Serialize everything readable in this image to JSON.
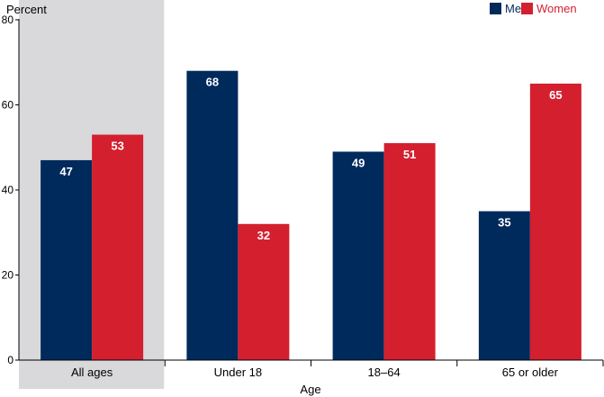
{
  "chart_data": {
    "type": "bar",
    "ylabel": "Percent",
    "xlabel": "Age",
    "ylim": [
      0,
      80
    ],
    "yticks": [
      0,
      20,
      40,
      60,
      80
    ],
    "grid": false,
    "legend_position": "top-right",
    "categories": [
      "All ages",
      "Under 18",
      "18–64",
      "65 or older"
    ],
    "highlighted_category": "All ages",
    "series": [
      {
        "name": "Men",
        "color": "#002a5c",
        "values": [
          47,
          68,
          49,
          35
        ]
      },
      {
        "name": "Women",
        "color": "#d41f2f",
        "values": [
          53,
          32,
          51,
          65
        ]
      }
    ]
  },
  "colors": {
    "highlight_band": "#d9d9db",
    "axis": "#000000",
    "label_text_on_bar": "#ffffff"
  }
}
